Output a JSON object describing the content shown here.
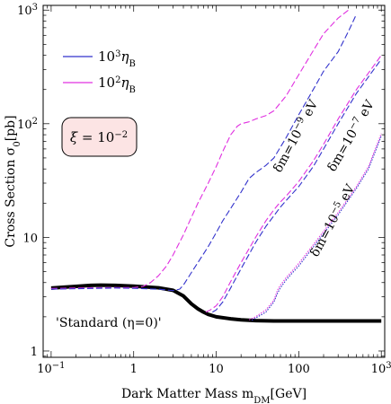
{
  "chart_data": {
    "type": "line",
    "xlabel": "Dark Matter Mass  m",
    "xlabel_sub": "DM",
    "xlabel_unit": "[GeV]",
    "ylabel": "Cross Section  σ",
    "ylabel_sub": "0",
    "ylabel_unit": "[pb]",
    "xscale": "log",
    "yscale": "log",
    "xlim": [
      0.08,
      1100
    ],
    "ylim": [
      0.88,
      1100
    ],
    "x_ticks": [
      {
        "value": 0.1,
        "base": "10",
        "exp": "−1"
      },
      {
        "value": 1,
        "text": "1"
      },
      {
        "value": 10,
        "text": "10"
      },
      {
        "value": 100,
        "text": "100"
      },
      {
        "value": 1000,
        "base": "10",
        "exp": "3"
      }
    ],
    "y_ticks": [
      {
        "value": 1,
        "text": "1"
      },
      {
        "value": 10,
        "text": "10"
      },
      {
        "value": 100,
        "base": "10",
        "exp": "2"
      },
      {
        "value": 1000,
        "base": "10",
        "exp": "3"
      }
    ],
    "legend": {
      "position": "top-left",
      "entries": [
        {
          "color": "#3333cc",
          "base": "10",
          "exp": "3",
          "sym": "η",
          "sub": "B"
        },
        {
          "color": "#e030e0",
          "base": "10",
          "exp": "2",
          "sym": "η",
          "sub": "B"
        }
      ]
    },
    "series": [
      {
        "label": "'Standard (η=0)'",
        "color": "#000000",
        "style": "solid",
        "x": [
          0.1,
          0.15,
          0.2,
          0.3,
          0.4,
          0.6,
          1.0,
          2.0,
          3.0,
          4.0,
          5.0,
          6.0,
          7.0,
          8.0,
          10,
          15,
          20,
          30,
          50,
          100,
          200,
          500,
          1000
        ],
        "y": [
          3.58,
          3.65,
          3.7,
          3.78,
          3.8,
          3.78,
          3.72,
          3.6,
          3.42,
          3.05,
          2.6,
          2.35,
          2.2,
          2.1,
          2.0,
          1.92,
          1.88,
          1.85,
          1.84,
          1.84,
          1.84,
          1.84,
          1.84
        ]
      },
      {
        "color": "#e030e0",
        "style": "dashed",
        "x": [
          0.1,
          0.3,
          0.6,
          1.0,
          1.3,
          1.6,
          2.0,
          2.5,
          3.0,
          4.0,
          5.0,
          6.0,
          8.0,
          10,
          12,
          15,
          18,
          20,
          25,
          30,
          40,
          50,
          70,
          100,
          150,
          200,
          300,
          400
        ],
        "y": [
          3.55,
          3.6,
          3.62,
          3.62,
          3.7,
          4.0,
          4.6,
          5.6,
          7.0,
          10.5,
          15,
          20,
          30,
          42,
          57,
          80,
          95,
          100,
          104,
          110,
          118,
          130,
          175,
          270,
          440,
          620,
          850,
          1000
        ]
      },
      {
        "color": "#3333cc",
        "style": "dashed",
        "x": [
          0.1,
          0.3,
          0.6,
          1.0,
          2.0,
          3.0,
          3.6,
          4.0,
          5.0,
          6.0,
          8.0,
          10,
          12,
          15,
          20,
          25,
          30,
          40,
          50,
          70,
          100,
          150,
          200,
          300,
          400,
          500
        ],
        "y": [
          3.5,
          3.55,
          3.58,
          3.56,
          3.5,
          3.4,
          3.5,
          3.8,
          4.9,
          6.0,
          8.3,
          11,
          14,
          18,
          25,
          33,
          37,
          43,
          50,
          75,
          120,
          200,
          290,
          430,
          650,
          920
        ]
      },
      {
        "color": "#e030e0",
        "style": "dashed",
        "x": [
          7.5,
          8.5,
          10,
          12,
          15,
          20,
          30,
          40,
          50,
          60,
          70,
          100,
          150,
          200,
          300,
          500,
          1000
        ],
        "y": [
          2.2,
          2.3,
          2.5,
          3.0,
          4.1,
          6.0,
          10,
          14,
          17.5,
          20.5,
          23,
          31,
          47,
          66,
          110,
          200,
          400
        ]
      },
      {
        "color": "#3333cc",
        "style": "dashed",
        "x": [
          9.0,
          10,
          12,
          15,
          20,
          30,
          40,
          50,
          60,
          70,
          100,
          150,
          200,
          300,
          500,
          1000
        ],
        "y": [
          2.2,
          2.3,
          2.7,
          3.6,
          5.3,
          9.0,
          12.5,
          15.5,
          18.5,
          21,
          28,
          42,
          60,
          100,
          185,
          370
        ]
      },
      {
        "color": "#e030e0",
        "style": "dotted",
        "x": [
          25,
          30,
          40,
          50,
          55,
          60,
          70,
          80,
          100,
          150,
          200,
          300,
          500,
          700,
          1000
        ],
        "y": [
          1.88,
          2.0,
          2.3,
          2.8,
          3.4,
          3.8,
          4.4,
          4.9,
          5.9,
          8.6,
          11.3,
          16.5,
          28,
          42,
          82
        ]
      },
      {
        "color": "#3333cc",
        "style": "dotted",
        "x": [
          27,
          30,
          40,
          50,
          55,
          60,
          70,
          80,
          100,
          150,
          200,
          300,
          500,
          700,
          1000
        ],
        "y": [
          1.86,
          1.95,
          2.2,
          2.7,
          3.2,
          3.6,
          4.2,
          4.7,
          5.6,
          8.2,
          10.8,
          15.8,
          27,
          40,
          78
        ]
      }
    ],
    "annotations": [
      {
        "id": "standard",
        "parts": [
          {
            "t": "'Standard (η=0)'"
          }
        ]
      },
      {
        "id": "dm9",
        "parts": [
          {
            "t": "δm=10"
          },
          {
            "t": "−9",
            "sup": true
          },
          {
            "t": " eV"
          }
        ]
      },
      {
        "id": "dm7",
        "parts": [
          {
            "t": "δm=10"
          },
          {
            "t": "−7",
            "sup": true
          },
          {
            "t": " eV"
          }
        ]
      },
      {
        "id": "dm5",
        "parts": [
          {
            "t": "δm=10"
          },
          {
            "t": "−5",
            "sup": true
          },
          {
            "t": " eV"
          }
        ]
      }
    ],
    "xi_box": {
      "sym": "ξ",
      "eq": " = 10",
      "exp": "−2",
      "fill": "#fce4e4"
    }
  }
}
